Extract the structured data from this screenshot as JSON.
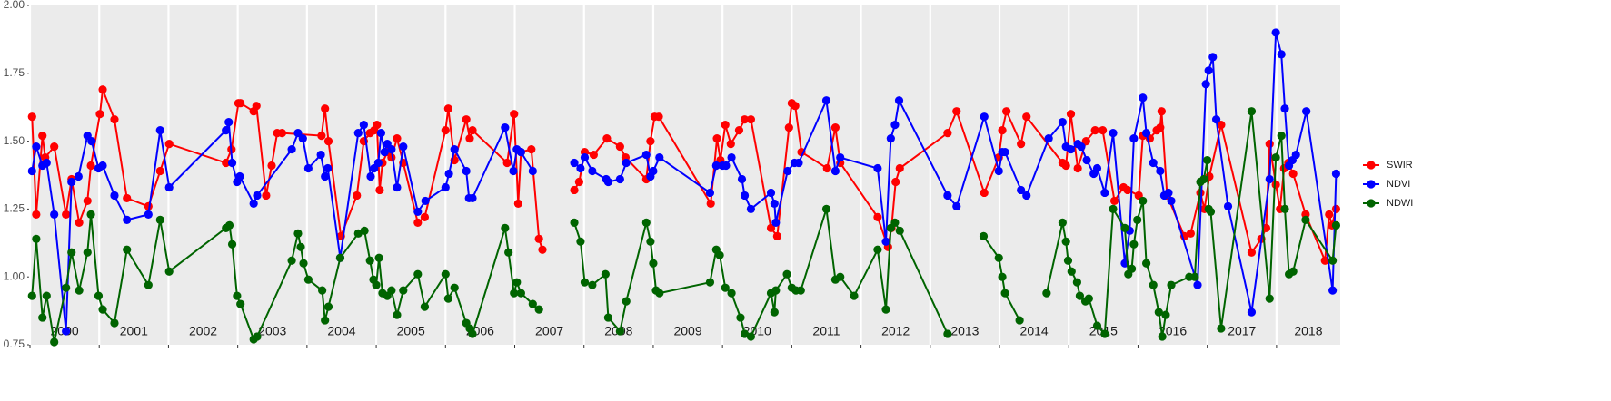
{
  "chart_data": {
    "type": "line",
    "xlim": [
      2000,
      2018.92
    ],
    "ylim": [
      0.75,
      2.0
    ],
    "yticks": [
      {
        "value": 0.75,
        "label": "0.75"
      },
      {
        "value": 1.0,
        "label": "1.00"
      },
      {
        "value": 1.25,
        "label": "1.25"
      },
      {
        "value": 1.5,
        "label": "1.50"
      },
      {
        "value": 1.75,
        "label": "1.75"
      },
      {
        "value": 2.0,
        "label": "2.00"
      }
    ],
    "xticks": [
      2000,
      2001,
      2002,
      2003,
      2004,
      2005,
      2006,
      2007,
      2008,
      2009,
      2010,
      2011,
      2012,
      2013,
      2014,
      2015,
      2016,
      2017,
      2018
    ],
    "grid": true,
    "legend": "right",
    "series": [
      {
        "name": "SWIR",
        "color": "#ff0000",
        "x": [
          2000.03,
          2000.09,
          2000.18,
          2000.22,
          2000.35,
          2000.52,
          2000.6,
          2000.71,
          2000.83,
          2000.88,
          2001.01,
          2001.05,
          2001.22,
          2001.4,
          2001.71,
          2001.88,
          2002.01,
          2002.83,
          2002.91,
          2003.01,
          2003.04,
          2003.23,
          2003.27,
          2003.41,
          2003.49,
          2003.57,
          2003.64,
          2004.21,
          2004.26,
          2004.31,
          2004.49,
          2004.72,
          2004.82,
          2004.91,
          2004.97,
          2005.01,
          2005.05,
          2005.09,
          2005.16,
          2005.22,
          2005.3,
          2005.39,
          2005.6,
          2005.7,
          2006.0,
          2006.04,
          2006.13,
          2006.3,
          2006.35,
          2006.39,
          2006.89,
          2006.99,
          2007.05,
          2007.09,
          2007.24,
          2007.35,
          2007.4,
          null,
          2007.86,
          2007.93,
          2008.01,
          2008.14,
          2008.33,
          2008.52,
          2008.6,
          2008.9,
          2008.96,
          2009.02,
          2009.08,
          2009.83,
          2009.92,
          2009.97,
          2010.04,
          2010.12,
          2010.24,
          2010.32,
          2010.41,
          2010.7,
          2010.79,
          2010.96,
          2011.0,
          2011.05,
          2011.14,
          2011.51,
          2011.63,
          2011.7,
          2012.24,
          2012.39,
          2012.44,
          2012.5,
          2012.56,
          2013.25,
          2013.38,
          2013.78,
          2013.99,
          2014.04,
          2014.1,
          2014.31,
          2014.39,
          2014.91,
          2014.96,
          2015.03,
          2015.13,
          2015.25,
          2015.38,
          2015.49,
          2015.66,
          2015.79,
          2015.85,
          2016.01,
          2016.07,
          2016.17,
          2016.27,
          2016.32,
          2016.34,
          2016.42,
          2016.67,
          2016.76,
          2016.9,
          2016.96,
          2017.03,
          2017.2,
          2017.64,
          2017.78,
          2017.85,
          2017.9,
          2017.99,
          2018.05,
          2018.11,
          2018.17,
          2018.24,
          2018.42,
          2018.7,
          2018.76,
          2018.8,
          2018.86
        ],
        "values": [
          1.59,
          1.23,
          1.52,
          1.44,
          1.48,
          1.23,
          1.36,
          1.2,
          1.28,
          1.41,
          1.6,
          1.69,
          1.58,
          1.29,
          1.26,
          1.39,
          1.49,
          1.42,
          1.47,
          1.64,
          1.64,
          1.61,
          1.63,
          1.3,
          1.41,
          1.53,
          1.53,
          1.52,
          1.62,
          1.5,
          1.15,
          1.3,
          1.5,
          1.53,
          1.54,
          1.56,
          1.32,
          1.42,
          1.46,
          1.44,
          1.51,
          1.42,
          1.2,
          1.22,
          1.54,
          1.62,
          1.43,
          1.58,
          1.51,
          1.54,
          1.42,
          1.6,
          1.27,
          1.46,
          1.47,
          1.14,
          1.1,
          null,
          1.32,
          1.35,
          1.46,
          1.45,
          1.51,
          1.48,
          1.44,
          1.36,
          1.5,
          1.59,
          1.59,
          1.27,
          1.51,
          1.43,
          1.56,
          1.49,
          1.54,
          1.58,
          1.58,
          1.18,
          1.15,
          1.55,
          1.64,
          1.63,
          1.46,
          1.4,
          1.55,
          1.42,
          1.22,
          1.11,
          1.18,
          1.35,
          1.4,
          1.53,
          1.61,
          1.31,
          1.44,
          1.54,
          1.61,
          1.49,
          1.59,
          1.42,
          1.41,
          1.6,
          1.4,
          1.5,
          1.54,
          1.54,
          1.28,
          1.33,
          1.32,
          1.3,
          1.52,
          1.51,
          1.54,
          1.55,
          1.61,
          1.3,
          1.15,
          1.16,
          1.31,
          1.25,
          1.37,
          1.56,
          1.09,
          1.14,
          1.18,
          1.49,
          1.34,
          1.25,
          1.4,
          1.42,
          1.38,
          1.23,
          1.06,
          1.23,
          1.19,
          1.25
        ]
      },
      {
        "name": "NDVI",
        "color": "#0000ff",
        "x": [
          2000.03,
          2000.09,
          2000.18,
          2000.24,
          2000.35,
          2000.52,
          2000.6,
          2000.7,
          2000.83,
          2000.89,
          2000.99,
          2001.05,
          2001.22,
          2001.4,
          2001.71,
          2001.88,
          2002.01,
          2002.83,
          2002.87,
          2002.92,
          2002.99,
          2003.03,
          2003.23,
          2003.28,
          2003.78,
          2003.87,
          2003.94,
          2004.02,
          2004.2,
          2004.26,
          2004.3,
          2004.48,
          2004.74,
          2004.82,
          2004.92,
          2004.97,
          2005.03,
          2005.07,
          2005.12,
          2005.16,
          2005.22,
          2005.3,
          2005.39,
          2005.6,
          2005.71,
          2006.0,
          2006.05,
          2006.13,
          2006.3,
          2006.34,
          2006.39,
          2006.86,
          2006.98,
          2007.03,
          2007.09,
          2007.26,
          null,
          2007.86,
          2007.95,
          2008.01,
          2008.12,
          2008.32,
          2008.35,
          2008.52,
          2008.61,
          2008.9,
          2008.96,
          2009.0,
          2009.09,
          2009.82,
          2009.91,
          2010.0,
          2010.05,
          2010.13,
          2010.28,
          2010.32,
          2010.41,
          2010.7,
          2010.75,
          2010.77,
          2010.94,
          2011.04,
          2011.1,
          2011.5,
          2011.63,
          2011.7,
          2012.24,
          2012.36,
          2012.43,
          2012.49,
          2012.55,
          2013.25,
          2013.38,
          2013.78,
          2013.99,
          2014.04,
          2014.08,
          2014.31,
          2014.39,
          2014.71,
          2014.91,
          2014.96,
          2015.03,
          2015.13,
          2015.18,
          2015.26,
          2015.36,
          2015.41,
          2015.52,
          2015.64,
          2015.81,
          2015.88,
          2015.94,
          2016.07,
          2016.12,
          2016.22,
          2016.32,
          2016.38,
          2016.44,
          2016.48,
          2016.86,
          2016.98,
          2017.02,
          2017.08,
          2017.13,
          2017.3,
          2017.64,
          2017.9,
          2017.99,
          2018.07,
          2018.12,
          2018.18,
          2018.23,
          2018.28,
          2018.43,
          2018.81,
          2018.86
        ],
        "values": [
          1.39,
          1.48,
          1.41,
          1.42,
          1.23,
          0.8,
          1.35,
          1.37,
          1.52,
          1.5,
          1.4,
          1.41,
          1.3,
          1.21,
          1.23,
          1.54,
          1.33,
          1.54,
          1.57,
          1.42,
          1.35,
          1.37,
          1.27,
          1.3,
          1.47,
          1.53,
          1.51,
          1.4,
          1.45,
          1.37,
          1.4,
          1.07,
          1.53,
          1.56,
          1.37,
          1.4,
          1.42,
          1.53,
          1.46,
          1.49,
          1.47,
          1.33,
          1.48,
          1.24,
          1.28,
          1.33,
          1.38,
          1.47,
          1.39,
          1.29,
          1.29,
          1.55,
          1.39,
          1.47,
          1.46,
          1.39,
          null,
          1.42,
          1.4,
          1.44,
          1.39,
          1.36,
          1.35,
          1.36,
          1.42,
          1.45,
          1.37,
          1.39,
          1.44,
          1.31,
          1.41,
          1.41,
          1.41,
          1.44,
          1.36,
          1.3,
          1.25,
          1.31,
          1.27,
          1.2,
          1.39,
          1.42,
          1.42,
          1.65,
          1.39,
          1.44,
          1.4,
          1.13,
          1.51,
          1.56,
          1.65,
          1.3,
          1.26,
          1.59,
          1.39,
          1.46,
          1.46,
          1.32,
          1.3,
          1.51,
          1.57,
          1.48,
          1.47,
          1.49,
          1.48,
          1.43,
          1.38,
          1.4,
          1.31,
          1.53,
          1.05,
          1.17,
          1.51,
          1.66,
          1.53,
          1.42,
          1.39,
          1.3,
          1.31,
          1.28,
          0.97,
          1.71,
          1.76,
          1.81,
          1.58,
          1.26,
          0.87,
          1.36,
          1.9,
          1.82,
          1.62,
          1.41,
          1.43,
          1.45,
          1.61,
          0.95,
          1.38
        ]
      },
      {
        "name": "NDWI",
        "color": "#006400",
        "x": [
          2000.03,
          2000.09,
          2000.18,
          2000.24,
          2000.35,
          2000.52,
          2000.6,
          2000.71,
          2000.83,
          2000.88,
          2000.99,
          2001.05,
          2001.22,
          2001.4,
          2001.71,
          2001.88,
          2002.01,
          2002.83,
          2002.88,
          2002.92,
          2002.99,
          2003.04,
          2003.23,
          2003.28,
          2003.78,
          2003.87,
          2003.91,
          2003.95,
          2004.02,
          2004.22,
          2004.26,
          2004.31,
          2004.48,
          2004.74,
          2004.83,
          2004.91,
          2004.96,
          2005.0,
          2005.04,
          2005.09,
          2005.16,
          2005.22,
          2005.3,
          2005.39,
          2005.6,
          2005.7,
          2006.0,
          2006.04,
          2006.13,
          2006.3,
          2006.35,
          2006.39,
          2006.86,
          2006.91,
          2006.99,
          2007.03,
          2007.09,
          2007.26,
          2007.35,
          null,
          2007.86,
          2007.95,
          2008.01,
          2008.12,
          2008.31,
          2008.35,
          2008.52,
          2008.61,
          2008.9,
          2008.96,
          2009.0,
          2009.04,
          2009.09,
          2009.82,
          2009.91,
          2009.96,
          2010.04,
          2010.13,
          2010.26,
          2010.32,
          2010.41,
          2010.7,
          2010.75,
          2010.77,
          2010.93,
          2011.0,
          2011.06,
          2011.13,
          2011.5,
          2011.63,
          2011.7,
          2011.9,
          2012.24,
          2012.36,
          2012.43,
          2012.49,
          2012.56,
          2013.25,
          null,
          2013.77,
          2013.99,
          2014.04,
          2014.08,
          2014.29,
          null,
          2014.68,
          2014.91,
          2014.96,
          2014.99,
          2015.04,
          2015.12,
          2015.16,
          2015.24,
          2015.29,
          2015.41,
          2015.52,
          2015.64,
          2015.81,
          2015.86,
          2015.91,
          2015.94,
          2015.99,
          2016.07,
          2016.12,
          2016.22,
          2016.3,
          2016.35,
          2016.4,
          2016.48,
          2016.74,
          2016.82,
          2016.9,
          2016.95,
          2017.0,
          2017.02,
          2017.05,
          2017.2,
          2017.64,
          2017.9,
          2017.99,
          2018.07,
          2018.12,
          2018.18,
          2018.24,
          2018.42,
          2018.81,
          2018.86
        ],
        "values": [
          0.93,
          1.14,
          0.85,
          0.93,
          0.76,
          0.96,
          1.09,
          0.95,
          1.09,
          1.23,
          0.93,
          0.88,
          0.83,
          1.1,
          0.97,
          1.21,
          1.02,
          1.18,
          1.19,
          1.12,
          0.93,
          0.9,
          0.77,
          0.78,
          1.06,
          1.16,
          1.11,
          1.05,
          0.99,
          0.95,
          0.84,
          0.89,
          1.07,
          1.16,
          1.17,
          1.06,
          0.99,
          0.97,
          1.07,
          0.94,
          0.93,
          0.95,
          0.86,
          0.95,
          1.01,
          0.89,
          1.01,
          0.92,
          0.96,
          0.83,
          0.81,
          0.79,
          1.18,
          1.09,
          0.94,
          0.98,
          0.94,
          0.9,
          0.88,
          null,
          1.2,
          1.13,
          0.98,
          0.97,
          1.01,
          0.85,
          0.8,
          0.91,
          1.2,
          1.13,
          1.05,
          0.95,
          0.94,
          0.98,
          1.1,
          1.08,
          0.96,
          0.94,
          0.85,
          0.79,
          0.78,
          0.94,
          0.87,
          0.95,
          1.01,
          0.96,
          0.95,
          0.95,
          1.25,
          0.99,
          1.0,
          0.93,
          1.1,
          0.88,
          1.18,
          1.2,
          1.17,
          0.79,
          null,
          1.15,
          1.07,
          1.0,
          0.94,
          0.84,
          null,
          0.94,
          1.2,
          1.13,
          1.06,
          1.02,
          0.98,
          0.93,
          0.91,
          0.92,
          0.82,
          0.79,
          1.25,
          1.18,
          1.01,
          1.03,
          1.12,
          1.21,
          1.28,
          1.05,
          0.97,
          0.87,
          0.78,
          0.86,
          0.97,
          1.0,
          1.0,
          1.35,
          1.36,
          1.43,
          1.25,
          1.24,
          0.81,
          1.61,
          0.92,
          1.44,
          1.52,
          1.25,
          1.01,
          1.02,
          1.21,
          1.06,
          1.19
        ]
      }
    ]
  }
}
